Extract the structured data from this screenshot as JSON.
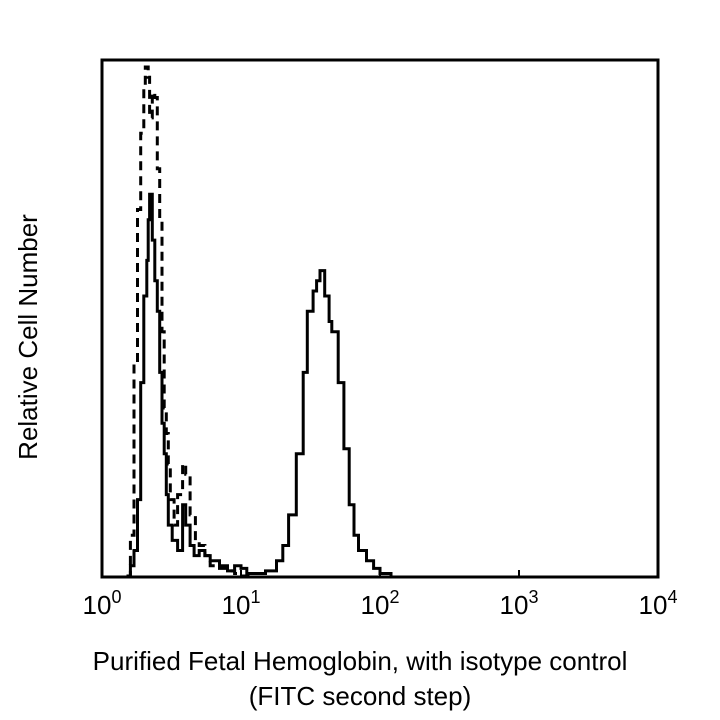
{
  "chart_data": {
    "type": "line",
    "ylabel": "Relative Cell Number",
    "xlabel": "Purified Fetal Hemoglobin, with isotype control",
    "xlabel_line2": "(FITC second step)",
    "x_scale": "log",
    "xlim": [
      1,
      10000
    ],
    "ylim": [
      0,
      100
    ],
    "grid": false,
    "x_ticks": [
      {
        "value": 1,
        "base": "10",
        "exp": "0"
      },
      {
        "value": 10,
        "base": "10",
        "exp": "1"
      },
      {
        "value": 100,
        "base": "10",
        "exp": "2"
      },
      {
        "value": 1000,
        "base": "10",
        "exp": "3"
      },
      {
        "value": 10000,
        "base": "10",
        "exp": "4"
      }
    ],
    "series": [
      {
        "style": "dashed",
        "x": [
          1.5,
          1.6,
          1.7,
          1.8,
          1.9,
          2.0,
          2.05,
          2.1,
          2.15,
          2.2,
          2.3,
          2.4,
          2.5,
          2.6,
          2.7,
          2.8,
          2.9,
          3.0,
          3.1,
          3.3,
          3.5,
          3.8,
          4.0,
          4.3,
          4.7,
          5.0,
          5.5,
          6.0,
          7.0,
          8.0,
          9.0,
          10.0,
          12.0
        ],
        "y": [
          0,
          8,
          42,
          72,
          87,
          96,
          100,
          100,
          98,
          90,
          95,
          94,
          80,
          70,
          48,
          33,
          28,
          22,
          15,
          10,
          16,
          22,
          20,
          12,
          7,
          6,
          4,
          2,
          1.5,
          1,
          0.5,
          0,
          0
        ]
      },
      {
        "style": "solid",
        "x": [
          1.5,
          1.6,
          1.7,
          1.8,
          1.9,
          2.0,
          2.1,
          2.15,
          2.2,
          2.3,
          2.4,
          2.5,
          2.6,
          2.7,
          2.8,
          2.9,
          3.0,
          3.2,
          3.5,
          3.8,
          4.0,
          4.3,
          4.6,
          5.0,
          5.5,
          6.0,
          7.0,
          8.0,
          9.0,
          10.0,
          11.0,
          13.0,
          15.0,
          18.0,
          20.0,
          22.0,
          25.0,
          28.0,
          30.0,
          33.0,
          35.0,
          37.0,
          40.0,
          43.0,
          45.0,
          50.0,
          55.0,
          60.0,
          65.0,
          70.0,
          80.0,
          90.0,
          100.0,
          120.0
        ],
        "y": [
          0,
          2,
          5,
          15,
          38,
          55,
          62,
          70,
          75,
          66,
          58,
          52,
          40,
          30,
          24,
          16,
          10,
          7,
          5,
          14,
          10,
          6,
          4,
          5,
          4,
          3,
          2,
          1,
          2,
          1.5,
          0.5,
          0.5,
          1,
          3,
          6,
          12,
          24,
          40,
          52,
          56,
          58,
          60,
          55,
          50,
          48,
          38,
          25,
          14,
          8,
          5,
          3,
          1.5,
          0.5,
          0
        ]
      }
    ]
  }
}
